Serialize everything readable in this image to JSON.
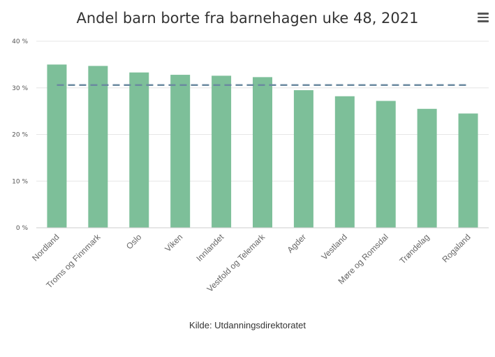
{
  "header": {
    "title": "Andel barn borte fra barnehagen uke 48, 2021",
    "menu_icon": "hamburger-menu-icon"
  },
  "footer": {
    "source": "Kilde: Utdanningsdirektoratet"
  },
  "chart_data": {
    "type": "bar",
    "title": "Andel barn borte fra barnehagen uke 48, 2021",
    "xlabel": "",
    "ylabel": "",
    "categories": [
      "Nordland",
      "Troms og Finnmark",
      "Oslo",
      "Viken",
      "Innlandet",
      "Vestfold og Telemark",
      "Agder",
      "Vestland",
      "Møre og Romsdal",
      "Trøndelag",
      "Rogaland"
    ],
    "values": [
      35.0,
      34.7,
      33.3,
      32.8,
      32.6,
      32.3,
      29.5,
      28.2,
      27.2,
      25.5,
      24.5
    ],
    "ylim": [
      0,
      40
    ],
    "yticks": [
      0,
      10,
      20,
      30,
      40
    ],
    "ytick_labels": [
      "0 %",
      "10 %",
      "20 %",
      "30 %",
      "40 %"
    ],
    "reference_line": 30.6,
    "grid": true,
    "colors": {
      "bar": "#7dbf99",
      "reference_line": "#6b8aa0",
      "grid": "#e6e6e6"
    }
  }
}
